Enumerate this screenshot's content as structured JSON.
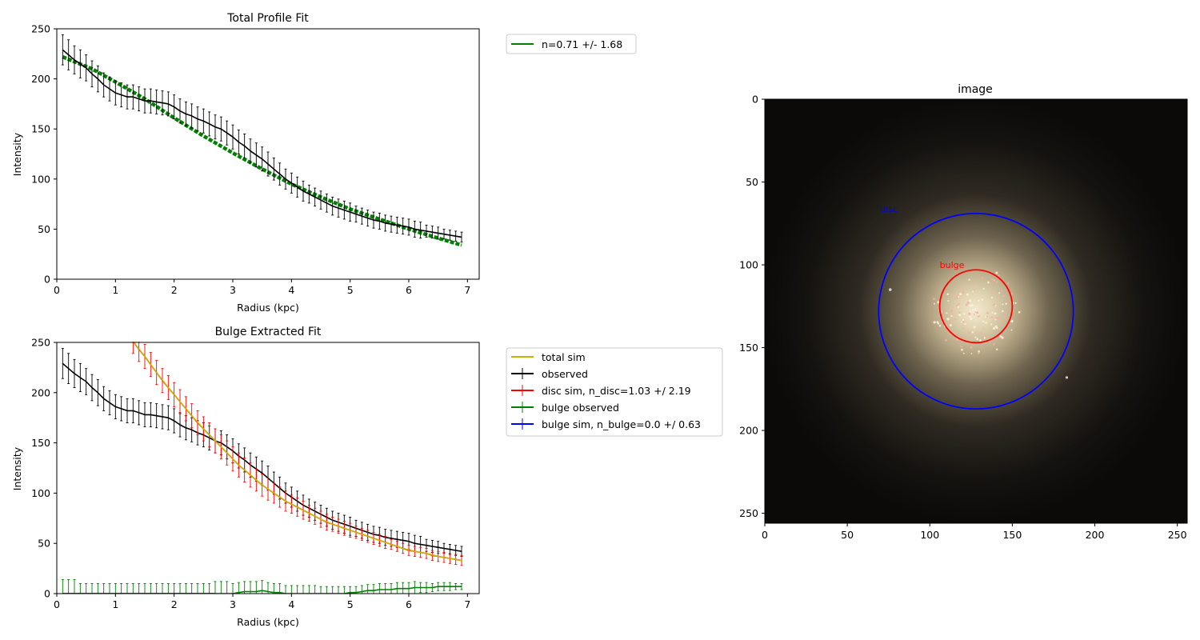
{
  "chart_data": [
    {
      "type": "line",
      "title": "Total Profile Fit",
      "xlabel": "Radius (kpc)",
      "ylabel": "Intensity",
      "xlim": [
        0,
        7.2
      ],
      "ylim": [
        0,
        250
      ],
      "xticks": [
        "0",
        "1",
        "2",
        "3",
        "4",
        "5",
        "6",
        "7"
      ],
      "yticks": [
        "0",
        "50",
        "100",
        "150",
        "200",
        "250"
      ],
      "grid": false,
      "legend_position": "outside-right-top",
      "legend": [
        "n=0.71 +/- 1.68"
      ],
      "series": [
        {
          "name": "n=0.71 +/- 1.68",
          "color": "#008000",
          "style": "thick dashed",
          "x": [
            0.1,
            0.6,
            1.0,
            1.5,
            2.0,
            2.5,
            3.0,
            3.5,
            4.0,
            4.5,
            5.0,
            5.5,
            6.0,
            6.5,
            6.9
          ],
          "y": [
            222,
            210,
            197,
            180,
            161,
            143,
            126,
            110,
            95,
            82,
            70,
            60,
            50,
            41,
            34
          ]
        },
        {
          "color": "#000000",
          "errorbars": true,
          "x": [
            0.1,
            0.2,
            0.3,
            0.4,
            0.5,
            0.6,
            0.7,
            0.8,
            0.9,
            1.0,
            1.1,
            1.2,
            1.3,
            1.4,
            1.5,
            1.6,
            1.7,
            1.8,
            1.9,
            2.0,
            2.1,
            2.2,
            2.3,
            2.4,
            2.5,
            2.6,
            2.7,
            2.8,
            2.9,
            3.0,
            3.1,
            3.2,
            3.3,
            3.4,
            3.5,
            3.6,
            3.7,
            3.8,
            3.9,
            4.0,
            4.1,
            4.2,
            4.3,
            4.4,
            4.5,
            4.6,
            4.7,
            4.8,
            4.9,
            5.0,
            5.1,
            5.2,
            5.3,
            5.4,
            5.5,
            5.6,
            5.7,
            5.8,
            5.9,
            6.0,
            6.1,
            6.2,
            6.3,
            6.4,
            6.5,
            6.6,
            6.7,
            6.8,
            6.9
          ],
          "y": [
            229,
            224,
            219,
            215,
            211,
            205,
            200,
            194,
            190,
            186,
            184,
            182,
            182,
            180,
            178,
            178,
            177,
            176,
            175,
            172,
            168,
            165,
            163,
            160,
            158,
            155,
            152,
            150,
            146,
            142,
            137,
            133,
            128,
            124,
            120,
            115,
            110,
            105,
            100,
            96,
            92,
            88,
            85,
            82,
            79,
            76,
            73,
            71,
            69,
            67,
            65,
            63,
            61,
            59,
            58,
            56,
            55,
            54,
            53,
            52,
            50,
            49,
            48,
            47,
            46,
            45,
            44,
            43,
            42
          ],
          "yerr": [
            15,
            15,
            14,
            14,
            13,
            13,
            13,
            12,
            12,
            12,
            12,
            12,
            12,
            12,
            12,
            12,
            12,
            12,
            12,
            12,
            12,
            12,
            12,
            12,
            12,
            12,
            12,
            12,
            12,
            12,
            12,
            12,
            12,
            12,
            12,
            12,
            11,
            11,
            10,
            10,
            10,
            10,
            9,
            9,
            9,
            9,
            9,
            9,
            9,
            9,
            8,
            8,
            8,
            8,
            8,
            8,
            8,
            8,
            8,
            8,
            8,
            8,
            6,
            6,
            6,
            5,
            5,
            5,
            5
          ]
        }
      ]
    },
    {
      "type": "line",
      "title": "Bulge Extracted Fit",
      "xlabel": "Radius (kpc)",
      "ylabel": "Intensity",
      "xlim": [
        0,
        7.2
      ],
      "ylim": [
        0,
        250
      ],
      "xticks": [
        "0",
        "1",
        "2",
        "3",
        "4",
        "5",
        "6",
        "7"
      ],
      "yticks": [
        "0",
        "50",
        "100",
        "150",
        "200",
        "250"
      ],
      "grid": false,
      "legend_position": "outside-right-top",
      "legend": [
        "total sim",
        "observed",
        "disc sim, n_disc=1.03 +/ 2.19",
        "bulge observed",
        "bulge sim, n_bulge=0.0 +/ 0.63"
      ],
      "series": [
        {
          "name": "observed",
          "color": "#000000",
          "errorbars": true,
          "x": [
            0.1,
            0.2,
            0.3,
            0.4,
            0.5,
            0.6,
            0.7,
            0.8,
            0.9,
            1.0,
            1.1,
            1.2,
            1.3,
            1.4,
            1.5,
            1.6,
            1.7,
            1.8,
            1.9,
            2.0,
            2.1,
            2.2,
            2.3,
            2.4,
            2.5,
            2.6,
            2.7,
            2.8,
            2.9,
            3.0,
            3.1,
            3.2,
            3.3,
            3.4,
            3.5,
            3.6,
            3.7,
            3.8,
            3.9,
            4.0,
            4.1,
            4.2,
            4.3,
            4.4,
            4.5,
            4.6,
            4.7,
            4.8,
            4.9,
            5.0,
            5.1,
            5.2,
            5.3,
            5.4,
            5.5,
            5.6,
            5.7,
            5.8,
            5.9,
            6.0,
            6.1,
            6.2,
            6.3,
            6.4,
            6.5,
            6.6,
            6.7,
            6.8,
            6.9
          ],
          "y": [
            229,
            224,
            219,
            215,
            211,
            205,
            200,
            194,
            190,
            186,
            184,
            182,
            182,
            180,
            178,
            178,
            177,
            176,
            175,
            172,
            168,
            165,
            163,
            160,
            158,
            155,
            152,
            150,
            146,
            142,
            137,
            133,
            128,
            124,
            120,
            115,
            110,
            105,
            100,
            96,
            92,
            88,
            85,
            82,
            79,
            76,
            73,
            71,
            69,
            67,
            65,
            63,
            61,
            59,
            58,
            56,
            55,
            54,
            53,
            52,
            50,
            49,
            48,
            47,
            46,
            45,
            44,
            43,
            42
          ],
          "yerr": [
            15,
            15,
            14,
            14,
            13,
            13,
            13,
            12,
            12,
            12,
            12,
            12,
            12,
            12,
            12,
            12,
            12,
            12,
            12,
            12,
            12,
            12,
            12,
            12,
            12,
            12,
            12,
            12,
            12,
            12,
            12,
            12,
            12,
            12,
            12,
            12,
            11,
            11,
            10,
            10,
            10,
            10,
            9,
            9,
            9,
            9,
            9,
            9,
            9,
            9,
            8,
            8,
            8,
            8,
            8,
            8,
            8,
            8,
            8,
            8,
            8,
            8,
            6,
            6,
            6,
            5,
            5,
            5,
            5
          ]
        },
        {
          "name": "disc sim, n_disc=1.03 +/ 2.19",
          "color": "#ff0000",
          "errorbars": true,
          "x": [
            1.3,
            1.4,
            1.5,
            1.6,
            1.7,
            1.8,
            1.9,
            2.0,
            2.1,
            2.2,
            2.3,
            2.4,
            2.5,
            2.6,
            2.7,
            2.8,
            2.9,
            3.0,
            3.1,
            3.2,
            3.3,
            3.4,
            3.5,
            3.6,
            3.7,
            3.8,
            3.9,
            4.0,
            4.1,
            4.2,
            4.3,
            4.4,
            4.5,
            4.6,
            4.7,
            4.8,
            4.9,
            5.0,
            5.1,
            5.2,
            5.3,
            5.4,
            5.5,
            5.6,
            5.7,
            5.8,
            5.9,
            6.0,
            6.1,
            6.2,
            6.3,
            6.4,
            6.5,
            6.6,
            6.7,
            6.8,
            6.9
          ],
          "y": [
            251,
            243,
            236,
            228,
            220,
            212,
            205,
            198,
            191,
            184,
            177,
            170,
            164,
            158,
            152,
            146,
            140,
            134,
            128,
            123,
            118,
            113,
            108,
            104,
            100,
            96,
            92,
            89,
            86,
            83,
            80,
            77,
            74,
            71,
            69,
            67,
            65,
            63,
            61,
            59,
            57,
            55,
            53,
            51,
            49,
            47,
            45,
            43,
            42,
            41,
            40,
            38,
            37,
            36,
            35,
            34,
            33
          ],
          "yerr": [
            12,
            12,
            12,
            12,
            12,
            12,
            12,
            12,
            12,
            12,
            12,
            12,
            12,
            12,
            12,
            12,
            12,
            12,
            12,
            12,
            12,
            11,
            11,
            11,
            10,
            10,
            10,
            9,
            9,
            9,
            8,
            8,
            8,
            8,
            7,
            7,
            7,
            7,
            6,
            6,
            6,
            6,
            6,
            6,
            5,
            5,
            5,
            5,
            5,
            5,
            5,
            5,
            5,
            5,
            5,
            5,
            5
          ]
        },
        {
          "name": "total sim",
          "color": "#c8b400",
          "x": [
            1.3,
            1.5,
            1.7,
            1.9,
            2.1,
            2.3,
            2.5,
            2.7,
            2.9,
            3.1,
            3.3,
            3.5,
            3.7,
            3.9,
            4.1,
            4.3,
            4.5,
            4.7,
            4.9,
            5.1,
            5.3,
            5.5,
            5.7,
            5.9,
            6.1,
            6.3,
            6.5,
            6.7,
            6.9
          ],
          "y": [
            251,
            236,
            220,
            205,
            191,
            177,
            164,
            152,
            140,
            128,
            118,
            108,
            100,
            92,
            86,
            80,
            74,
            69,
            65,
            61,
            57,
            53,
            49,
            45,
            42,
            40,
            37,
            35,
            33
          ]
        },
        {
          "name": "bulge observed",
          "color": "#008000",
          "errorbars": true,
          "x": [
            0.1,
            0.2,
            0.3,
            0.4,
            0.5,
            0.6,
            0.7,
            0.8,
            0.9,
            1.0,
            1.1,
            1.2,
            1.3,
            1.4,
            1.5,
            1.6,
            1.7,
            1.8,
            1.9,
            2.0,
            2.1,
            2.2,
            2.3,
            2.4,
            2.5,
            2.6,
            2.7,
            2.8,
            2.9,
            3.0,
            3.1,
            3.2,
            3.3,
            3.4,
            3.5,
            3.6,
            3.7,
            3.8,
            3.9,
            4.0,
            4.1,
            4.2,
            4.3,
            4.4,
            4.5,
            4.6,
            4.7,
            4.8,
            4.9,
            5.0,
            5.1,
            5.2,
            5.3,
            5.4,
            5.5,
            5.6,
            5.7,
            5.8,
            5.9,
            6.0,
            6.1,
            6.2,
            6.3,
            6.4,
            6.5,
            6.6,
            6.7,
            6.8,
            6.9
          ],
          "y": [
            0,
            0,
            0,
            0,
            0,
            0,
            0,
            0,
            0,
            0,
            0,
            0,
            0,
            0,
            0,
            0,
            0,
            0,
            0,
            0,
            0,
            0,
            0,
            0,
            0,
            0,
            0,
            0,
            0,
            0,
            1,
            2,
            2,
            2,
            3,
            2,
            1,
            1,
            0,
            0,
            0,
            0,
            0,
            0,
            0,
            0,
            0,
            0,
            0,
            1,
            1,
            2,
            3,
            3,
            4,
            4,
            4,
            5,
            5,
            5,
            6,
            6,
            6,
            6,
            7,
            7,
            7,
            7,
            7
          ],
          "yerr": [
            14,
            14,
            14,
            10,
            10,
            10,
            10,
            10,
            10,
            10,
            10,
            10,
            10,
            10,
            10,
            10,
            10,
            10,
            10,
            10,
            10,
            10,
            10,
            10,
            10,
            10,
            12,
            12,
            12,
            10,
            10,
            10,
            10,
            10,
            10,
            9,
            9,
            9,
            8,
            8,
            8,
            8,
            8,
            8,
            7,
            7,
            7,
            7,
            7,
            6,
            6,
            6,
            6,
            6,
            6,
            6,
            6,
            6,
            6,
            6,
            6,
            5,
            5,
            4,
            4,
            4,
            4,
            3,
            3
          ]
        },
        {
          "name": "bulge sim, n_bulge=0.0 +/ 0.63",
          "color": "#0000ff",
          "x": [
            0.1,
            0.5,
            1.0,
            1.5,
            2.0,
            2.5,
            2.7
          ],
          "y": [
            0,
            0,
            0,
            0,
            0,
            0,
            0
          ]
        }
      ]
    },
    {
      "type": "heatmap",
      "title": "image",
      "xlim": [
        0,
        256
      ],
      "ylim": [
        256,
        0
      ],
      "xticks": [
        "0",
        "50",
        "100",
        "150",
        "200",
        "250"
      ],
      "yticks": [
        "0",
        "50",
        "100",
        "150",
        "200",
        "250"
      ],
      "annotations": [
        {
          "text": "disc",
          "color": "#0000ff",
          "x": 70,
          "y": 68
        },
        {
          "text": "bulge",
          "color": "#ff0000",
          "x": 106,
          "y": 102
        }
      ],
      "circles": [
        {
          "label": "disc",
          "color": "#0000ff",
          "cx": 128,
          "cy": 128,
          "r": 59
        },
        {
          "label": "bulge",
          "color": "#ff0000",
          "cx": 128,
          "cy": 125,
          "r": 22
        }
      ]
    }
  ]
}
